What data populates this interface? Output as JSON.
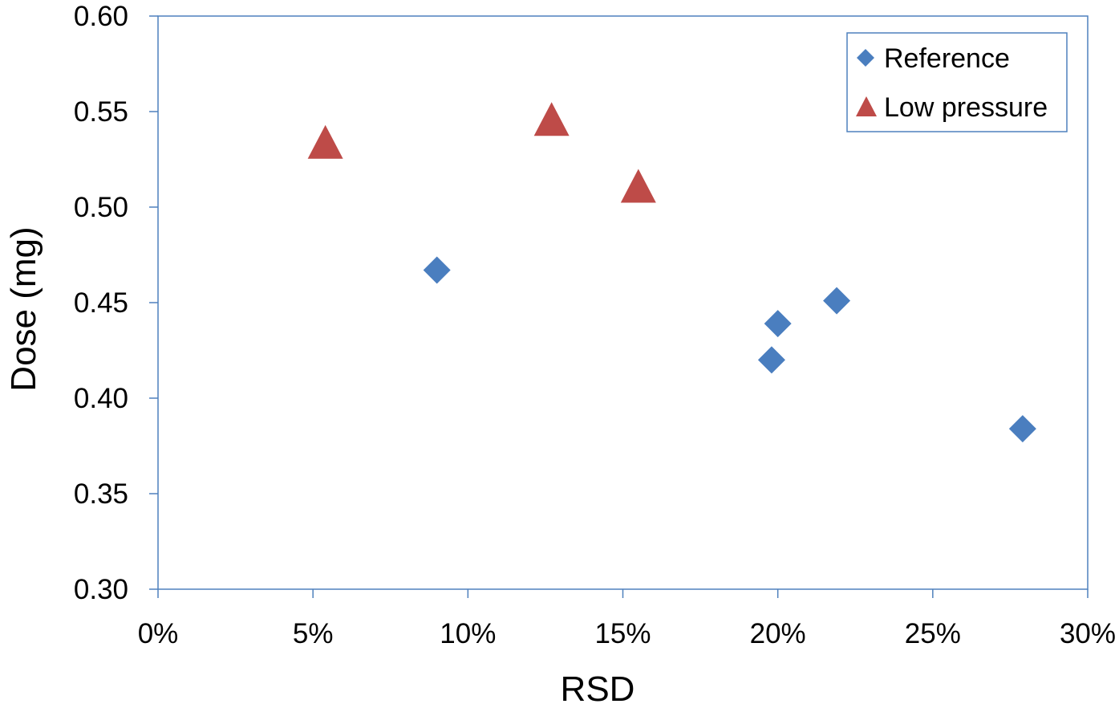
{
  "chart_data": {
    "type": "scatter",
    "title": "",
    "xlabel": "RSD",
    "ylabel": "Dose (mg)",
    "xlim": [
      0,
      0.3
    ],
    "ylim": [
      0.3,
      0.6
    ],
    "xticks": [
      0,
      0.05,
      0.1,
      0.15,
      0.2,
      0.25,
      0.3
    ],
    "xtick_labels": [
      "0%",
      "5%",
      "10%",
      "15%",
      "20%",
      "25%",
      "30%"
    ],
    "yticks": [
      0.3,
      0.35,
      0.4,
      0.45,
      0.5,
      0.55,
      0.6
    ],
    "ytick_labels": [
      "0.30",
      "0.35",
      "0.40",
      "0.45",
      "0.50",
      "0.55",
      "0.60"
    ],
    "grid": false,
    "legend_position": "top-right",
    "series": [
      {
        "name": "Reference",
        "marker": "diamond",
        "color": "#4a7ebf",
        "points": [
          {
            "x": 0.09,
            "y": 0.467
          },
          {
            "x": 0.198,
            "y": 0.42
          },
          {
            "x": 0.2,
            "y": 0.439
          },
          {
            "x": 0.219,
            "y": 0.451
          },
          {
            "x": 0.279,
            "y": 0.384
          }
        ]
      },
      {
        "name": "Low pressure",
        "marker": "triangle",
        "color": "#be4b48",
        "points": [
          {
            "x": 0.054,
            "y": 0.532
          },
          {
            "x": 0.127,
            "y": 0.544
          },
          {
            "x": 0.155,
            "y": 0.509
          }
        ]
      }
    ]
  },
  "colors": {
    "axis": "#4f81bd",
    "legend_border": "#4f81bd"
  }
}
